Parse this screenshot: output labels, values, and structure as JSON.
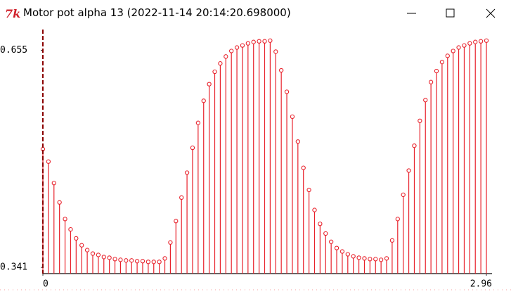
{
  "window": {
    "title": "Motor pot alpha 13 (2022-11-14 20:14:20.698000)"
  },
  "chart_data": {
    "type": "stem",
    "color": "#e8202a",
    "x": [
      0,
      0.037,
      0.074,
      0.111,
      0.148,
      0.185,
      0.222,
      0.259,
      0.296,
      0.333,
      0.37,
      0.407,
      0.444,
      0.481,
      0.518,
      0.555,
      0.592,
      0.629,
      0.666,
      0.703,
      0.74,
      0.777,
      0.814,
      0.851,
      0.888,
      0.925,
      0.962,
      0.999,
      1.036,
      1.073,
      1.11,
      1.147,
      1.184,
      1.221,
      1.258,
      1.295,
      1.332,
      1.369,
      1.406,
      1.443,
      1.48,
      1.517,
      1.554,
      1.591,
      1.628,
      1.665,
      1.702,
      1.739,
      1.776,
      1.813,
      1.85,
      1.887,
      1.924,
      1.961,
      1.998,
      2.035,
      2.072,
      2.109,
      2.146,
      2.183,
      2.22,
      2.257,
      2.294,
      2.331,
      2.368,
      2.405,
      2.442,
      2.479,
      2.516,
      2.553,
      2.59,
      2.627,
      2.664,
      2.701,
      2.738,
      2.775,
      2.812,
      2.849,
      2.886,
      2.923,
      2.96
    ],
    "values": [
      0.512,
      0.494,
      0.463,
      0.435,
      0.411,
      0.396,
      0.383,
      0.373,
      0.366,
      0.361,
      0.359,
      0.356,
      0.355,
      0.353,
      0.352,
      0.351,
      0.351,
      0.35,
      0.35,
      0.349,
      0.349,
      0.349,
      0.354,
      0.377,
      0.408,
      0.442,
      0.478,
      0.514,
      0.55,
      0.582,
      0.606,
      0.624,
      0.636,
      0.646,
      0.654,
      0.659,
      0.662,
      0.665,
      0.667,
      0.668,
      0.668,
      0.669,
      0.653,
      0.626,
      0.595,
      0.559,
      0.523,
      0.485,
      0.453,
      0.424,
      0.404,
      0.39,
      0.378,
      0.369,
      0.364,
      0.36,
      0.357,
      0.355,
      0.354,
      0.353,
      0.353,
      0.352,
      0.354,
      0.38,
      0.411,
      0.446,
      0.481,
      0.517,
      0.553,
      0.583,
      0.609,
      0.625,
      0.638,
      0.647,
      0.654,
      0.659,
      0.662,
      0.665,
      0.667,
      0.668,
      0.669
    ],
    "xlim": [
      0,
      2.96
    ],
    "xticks": [
      0,
      2.96
    ],
    "ylim": [
      0.332,
      0.685
    ],
    "yticks": [
      0.341,
      0.655
    ]
  }
}
